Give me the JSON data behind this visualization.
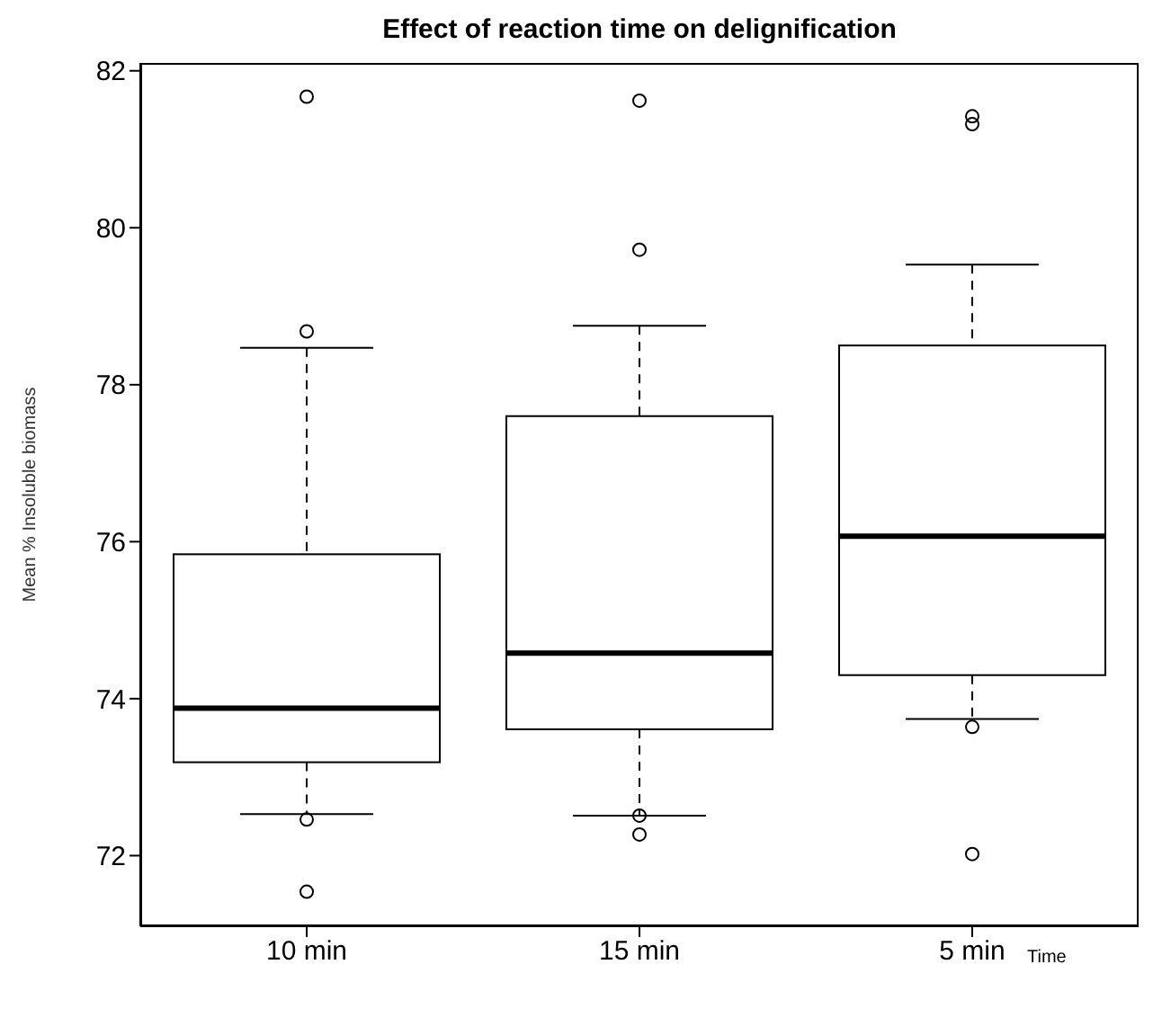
{
  "chart_data": {
    "type": "box",
    "title": "Effect of reaction time on delignification",
    "xlabel": "Time",
    "ylabel": "Mean % Insoluble biomass",
    "categories": [
      "10 min",
      "15 min",
      "5 min"
    ],
    "boxes": [
      {
        "low": 72.53,
        "q1": 73.19,
        "median": 73.88,
        "q3": 75.84,
        "high": 78.47,
        "outliers": [
          81.67,
          78.68,
          72.46,
          71.54
        ]
      },
      {
        "low": 72.51,
        "q1": 73.61,
        "median": 74.58,
        "q3": 77.6,
        "high": 78.75,
        "outliers": [
          81.62,
          79.72,
          72.51,
          72.27
        ]
      },
      {
        "low": 73.74,
        "q1": 74.3,
        "median": 76.07,
        "q3": 78.5,
        "high": 79.53,
        "outliers": [
          81.42,
          81.32,
          73.64,
          72.02
        ]
      }
    ],
    "ylim": [
      71.1,
      82.1
    ],
    "yticks": [
      72,
      74,
      76,
      78,
      80,
      82
    ],
    "grid": false,
    "legend": false,
    "marker": "circle"
  }
}
